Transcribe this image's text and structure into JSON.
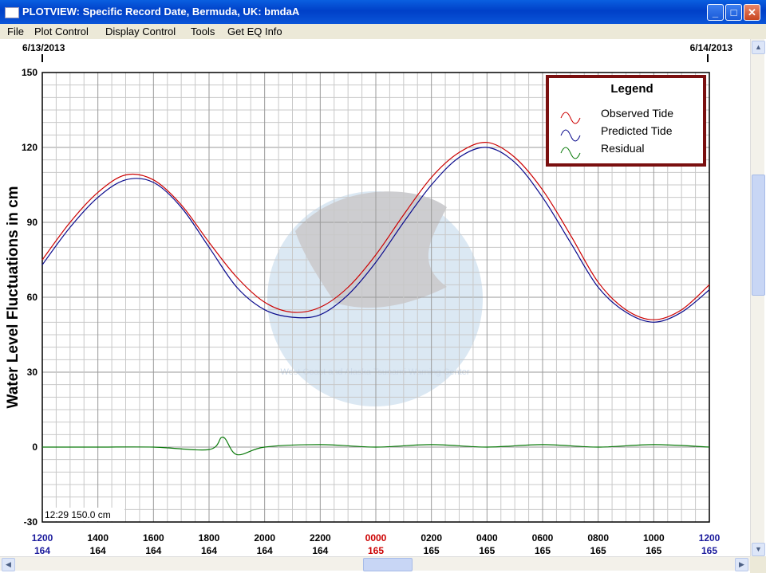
{
  "window": {
    "title": "PLOTVIEW: Specific Record Date, Bermuda, UK: bmdaA",
    "minimize_glyph": "_",
    "maximize_glyph": "□",
    "close_glyph": "✕"
  },
  "menu": {
    "items": [
      {
        "label": "File"
      },
      {
        "label": "Plot Control"
      },
      {
        "label": "Display Control"
      },
      {
        "label": "Tools"
      },
      {
        "label": "Get EQ Info"
      }
    ]
  },
  "chart_data": {
    "type": "line",
    "ylabel": "Water Level Fluctuations in cm",
    "ylim": [
      -30,
      150
    ],
    "yticks": [
      150,
      120,
      90,
      60,
      30,
      0,
      -30
    ],
    "date_left": "6/13/2013",
    "date_right": "6/14/2013",
    "cursor_readout": "12:29 150.0 cm",
    "x_ticks": [
      {
        "time": "1200",
        "day": "164",
        "color": "#1a1a9c"
      },
      {
        "time": "1400",
        "day": "164",
        "color": "#000000"
      },
      {
        "time": "1600",
        "day": "164",
        "color": "#000000"
      },
      {
        "time": "1800",
        "day": "164",
        "color": "#000000"
      },
      {
        "time": "2000",
        "day": "164",
        "color": "#000000"
      },
      {
        "time": "2200",
        "day": "164",
        "color": "#000000"
      },
      {
        "time": "0000",
        "day": "165",
        "color": "#cc0000"
      },
      {
        "time": "0200",
        "day": "165",
        "color": "#000000"
      },
      {
        "time": "0400",
        "day": "165",
        "color": "#000000"
      },
      {
        "time": "0600",
        "day": "165",
        "color": "#000000"
      },
      {
        "time": "0800",
        "day": "165",
        "color": "#000000"
      },
      {
        "time": "1000",
        "day": "165",
        "color": "#000000"
      },
      {
        "time": "1200",
        "day": "165",
        "color": "#1a1a9c"
      }
    ],
    "legend": {
      "title": "Legend",
      "entries": [
        "Observed Tide",
        "Predicted Tide",
        "Residual"
      ]
    },
    "watermark_text": "West Coast and Alaska Tsunami Warning Center",
    "colors": {
      "observed": "#cc0000",
      "predicted": "#0a0a8c",
      "residual": "#0a7a0a",
      "legend_border": "#7a0f0f"
    },
    "series": [
      {
        "name": "Observed Tide",
        "x": [
          0,
          1,
          2,
          3,
          4,
          5,
          6,
          7,
          8,
          9,
          10,
          11,
          12,
          13,
          14,
          15,
          16,
          17,
          18,
          19,
          20,
          21,
          22,
          23,
          24
        ],
        "y": [
          75,
          90,
          102,
          109,
          107,
          97,
          82,
          68,
          58,
          54,
          56,
          64,
          77,
          93,
          108,
          118,
          122,
          116,
          103,
          85,
          66,
          55,
          51,
          55,
          65
        ]
      },
      {
        "name": "Predicted Tide",
        "x": [
          0,
          1,
          2,
          3,
          4,
          5,
          6,
          7,
          8,
          9,
          10,
          11,
          12,
          13,
          14,
          15,
          16,
          17,
          18,
          19,
          20,
          21,
          22,
          23,
          24
        ],
        "y": [
          73,
          88,
          100,
          107,
          106,
          96,
          80,
          64,
          55,
          52,
          53,
          61,
          74,
          90,
          105,
          116,
          120,
          114,
          100,
          82,
          64,
          54,
          50,
          54,
          63
        ]
      },
      {
        "name": "Residual",
        "x": [
          0,
          2,
          4,
          6,
          6.5,
          7,
          8,
          10,
          12,
          14,
          16,
          18,
          20,
          22,
          24
        ],
        "y": [
          0,
          0,
          0,
          -1,
          4,
          -3,
          0,
          1,
          0,
          1,
          0,
          1,
          0,
          1,
          0
        ]
      }
    ]
  }
}
